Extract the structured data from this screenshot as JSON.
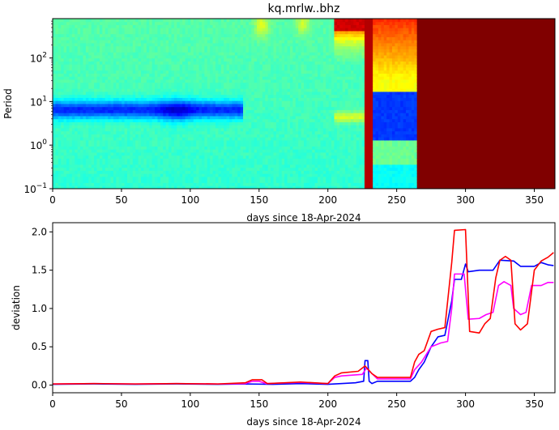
{
  "chart_data": [
    {
      "type": "heatmap",
      "title": "kq.mrlw..bhz",
      "xlabel": "days since 18-Apr-2024",
      "ylabel": "Period",
      "xlim": [
        0,
        365
      ],
      "ylim": [
        0.1,
        800
      ],
      "yscale": "log",
      "colormap": "jet",
      "xticks": [
        0,
        50,
        100,
        150,
        200,
        250,
        300,
        350
      ],
      "xtick_labels": [
        "0",
        "50",
        "100",
        "150",
        "200",
        "250",
        "300",
        "350"
      ],
      "yticks": [
        {
          "value": 0.1,
          "base": "10",
          "exp": "−1"
        },
        {
          "value": 1,
          "base": "10",
          "exp": "0"
        },
        {
          "value": 10,
          "base": "10",
          "exp": "1"
        },
        {
          "value": 100,
          "base": "10",
          "exp": "2"
        }
      ]
    },
    {
      "type": "line",
      "title": "",
      "xlabel": "days since 18-Apr-2024",
      "ylabel": "deviation",
      "xlim": [
        0,
        365
      ],
      "ylim": [
        -0.1,
        2.12
      ],
      "xticks": [
        0,
        50,
        100,
        150,
        200,
        250,
        300,
        350
      ],
      "xtick_labels": [
        "0",
        "50",
        "100",
        "150",
        "200",
        "250",
        "300",
        "350"
      ],
      "yticks": [
        0,
        0.5,
        1,
        1.5,
        2
      ],
      "ytick_labels": [
        "0.0",
        "0.5",
        "1.0",
        "1.5",
        "2.0"
      ],
      "series": [
        {
          "name": "blue",
          "color": "#0000ff",
          "points": [
            [
              0,
              0.01
            ],
            [
              30,
              0.015
            ],
            [
              60,
              0.01
            ],
            [
              90,
              0.015
            ],
            [
              120,
              0.01
            ],
            [
              140,
              0.015
            ],
            [
              160,
              0.01
            ],
            [
              180,
              0.02
            ],
            [
              200,
              0.01
            ],
            [
              220,
              0.03
            ],
            [
              226,
              0.05
            ],
            [
              227,
              0.32
            ],
            [
              229,
              0.32
            ],
            [
              230,
              0.05
            ],
            [
              232,
              0.02
            ],
            [
              236,
              0.05
            ],
            [
              260,
              0.05
            ],
            [
              263,
              0.1
            ],
            [
              266,
              0.2
            ],
            [
              270,
              0.3
            ],
            [
              275,
              0.5
            ],
            [
              280,
              0.63
            ],
            [
              285,
              0.65
            ],
            [
              290,
              1.1
            ],
            [
              292,
              1.38
            ],
            [
              297,
              1.38
            ],
            [
              300,
              1.58
            ],
            [
              302,
              1.48
            ],
            [
              310,
              1.5
            ],
            [
              320,
              1.5
            ],
            [
              325,
              1.63
            ],
            [
              335,
              1.62
            ],
            [
              340,
              1.55
            ],
            [
              350,
              1.55
            ],
            [
              355,
              1.6
            ],
            [
              360,
              1.57
            ],
            [
              364,
              1.56
            ]
          ]
        },
        {
          "name": "magenta",
          "color": "#ff00ff",
          "points": [
            [
              0,
              0.015
            ],
            [
              30,
              0.02
            ],
            [
              60,
              0.015
            ],
            [
              90,
              0.02
            ],
            [
              120,
              0.015
            ],
            [
              140,
              0.02
            ],
            [
              145,
              0.05
            ],
            [
              150,
              0.05
            ],
            [
              155,
              0.02
            ],
            [
              180,
              0.035
            ],
            [
              200,
              0.02
            ],
            [
              205,
              0.1
            ],
            [
              210,
              0.12
            ],
            [
              225,
              0.14
            ],
            [
              228,
              0.22
            ],
            [
              232,
              0.15
            ],
            [
              236,
              0.08
            ],
            [
              260,
              0.08
            ],
            [
              263,
              0.2
            ],
            [
              268,
              0.3
            ],
            [
              275,
              0.5
            ],
            [
              282,
              0.55
            ],
            [
              287,
              0.57
            ],
            [
              290,
              1.0
            ],
            [
              292,
              1.45
            ],
            [
              299,
              1.45
            ],
            [
              302,
              0.86
            ],
            [
              310,
              0.87
            ],
            [
              315,
              0.92
            ],
            [
              320,
              0.95
            ],
            [
              324,
              1.3
            ],
            [
              328,
              1.35
            ],
            [
              333,
              1.3
            ],
            [
              335,
              1.0
            ],
            [
              340,
              0.92
            ],
            [
              344,
              0.95
            ],
            [
              348,
              1.3
            ],
            [
              355,
              1.3
            ],
            [
              360,
              1.34
            ],
            [
              364,
              1.34
            ]
          ]
        },
        {
          "name": "red",
          "color": "#ff0000",
          "points": [
            [
              0,
              0.015
            ],
            [
              30,
              0.02
            ],
            [
              60,
              0.015
            ],
            [
              90,
              0.02
            ],
            [
              120,
              0.015
            ],
            [
              140,
              0.03
            ],
            [
              145,
              0.07
            ],
            [
              152,
              0.07
            ],
            [
              156,
              0.02
            ],
            [
              180,
              0.04
            ],
            [
              200,
              0.02
            ],
            [
              205,
              0.12
            ],
            [
              210,
              0.16
            ],
            [
              222,
              0.18
            ],
            [
              227,
              0.25
            ],
            [
              232,
              0.15
            ],
            [
              236,
              0.1
            ],
            [
              260,
              0.1
            ],
            [
              263,
              0.3
            ],
            [
              266,
              0.4
            ],
            [
              270,
              0.45
            ],
            [
              275,
              0.7
            ],
            [
              280,
              0.73
            ],
            [
              285,
              0.75
            ],
            [
              290,
              1.6
            ],
            [
              292,
              2.02
            ],
            [
              300,
              2.03
            ],
            [
              303,
              0.7
            ],
            [
              310,
              0.68
            ],
            [
              314,
              0.8
            ],
            [
              318,
              0.87
            ],
            [
              322,
              1.4
            ],
            [
              325,
              1.63
            ],
            [
              329,
              1.68
            ],
            [
              333,
              1.63
            ],
            [
              336,
              0.8
            ],
            [
              340,
              0.72
            ],
            [
              345,
              0.8
            ],
            [
              350,
              1.5
            ],
            [
              355,
              1.62
            ],
            [
              360,
              1.67
            ],
            [
              364,
              1.73
            ]
          ]
        }
      ]
    }
  ]
}
